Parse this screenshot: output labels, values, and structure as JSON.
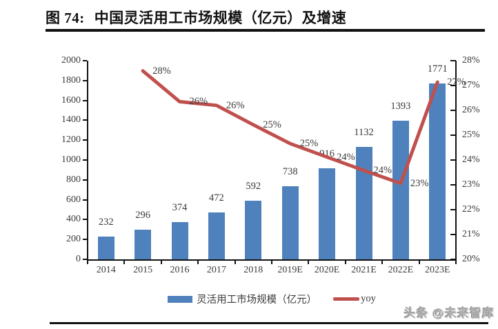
{
  "page": {
    "figure_label": "图 74:",
    "title": "中国灵活用工市场规模（亿元）及增速",
    "watermark": "头条 @未来智库"
  },
  "colors": {
    "bar": "#4F81BD",
    "line": "#C0504D",
    "axis": "#111111",
    "text": "#3a3a3a"
  },
  "chart_data": {
    "type": "bar",
    "title": "中国灵活用工市场规模（亿元）及增速",
    "categories": [
      "2014",
      "2015",
      "2016",
      "2017",
      "2018",
      "2019E",
      "2020E",
      "2021E",
      "2022E",
      "2023E"
    ],
    "series": [
      {
        "name": "灵活用工市场规模（亿元）",
        "type": "bar",
        "axis": "left",
        "color": "#4F81BD",
        "values": [
          232,
          296,
          374,
          472,
          592,
          738,
          916,
          1132,
          1393,
          1771
        ]
      },
      {
        "name": "yoy",
        "type": "line",
        "axis": "right",
        "color": "#C0504D",
        "x_start_index": 1,
        "values": [
          27.59,
          26.35,
          26.2,
          25.42,
          24.66,
          24.12,
          23.58,
          23.06,
          27.14
        ],
        "point_labels": [
          "28%",
          "26%",
          "26%",
          "25%",
          "25%",
          "24%",
          "24%",
          "23%",
          "27%"
        ]
      }
    ],
    "left_axis": {
      "min": 0,
      "max": 2000,
      "step": 200,
      "ticks": [
        "0",
        "200",
        "400",
        "600",
        "800",
        "1000",
        "1200",
        "1400",
        "1600",
        "1800",
        "2000"
      ]
    },
    "right_axis": {
      "min": 20,
      "max": 28,
      "step": 1,
      "ticks": [
        "20%",
        "21%",
        "22%",
        "23%",
        "24%",
        "25%",
        "26%",
        "27%",
        "28%"
      ]
    },
    "grid": false,
    "legend_position": "bottom",
    "legend": [
      {
        "label": "灵活用工市场规模（亿元）",
        "swatch": "bar",
        "color": "#4F81BD"
      },
      {
        "label": "yoy",
        "swatch": "line",
        "color": "#C0504D"
      }
    ]
  }
}
